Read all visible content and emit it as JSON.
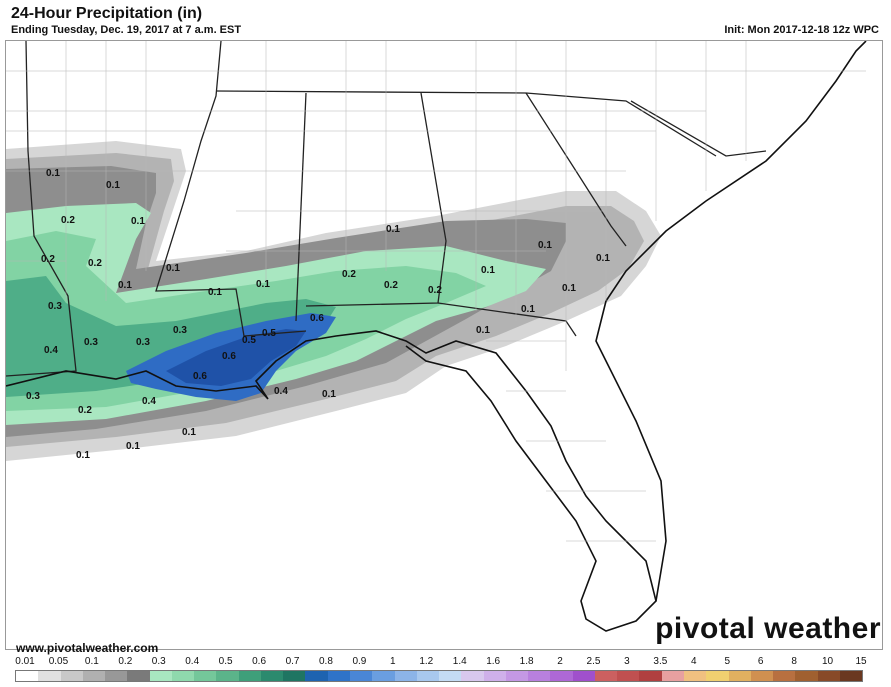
{
  "header": {
    "title": "24-Hour Precipitation (in)",
    "subtitle": "Ending Tuesday, Dec. 19, 2017 at 7 a.m. EST",
    "init": "Init: Mon 2017-12-18 12z WPC"
  },
  "footer": {
    "website": "www.pivotalweather.com",
    "brand": "pivotal weather"
  },
  "map": {
    "contour_labels": [
      "0.1",
      "0.1",
      "0.2",
      "0.1",
      "0.2",
      "0.2",
      "0.1",
      "0.1",
      "0.3",
      "0.3",
      "0.4",
      "0.3",
      "0.3",
      "0.3",
      "0.2",
      "0.4",
      "0.1",
      "0.1",
      "0.1",
      "0.2",
      "0.2",
      "0.2",
      "0.1",
      "0.1",
      "0.1",
      "0.1",
      "0.1",
      "0.1",
      "0.6",
      "0.5",
      "0.5",
      "0.6",
      "0.6",
      "0.4",
      "0.1",
      "0.1",
      "0.1",
      "0.1"
    ]
  },
  "legend": {
    "labels": [
      "0.01",
      "0.05",
      "0.1",
      "0.2",
      "0.3",
      "0.4",
      "0.5",
      "0.6",
      "0.7",
      "0.8",
      "0.9",
      "1",
      "1.2",
      "1.4",
      "1.6",
      "1.8",
      "2",
      "2.5",
      "3",
      "3.5",
      "4",
      "5",
      "6",
      "8",
      "10",
      "15"
    ],
    "colors": [
      "#ffffff",
      "#e0e0e0",
      "#c8c8c8",
      "#b0b0b0",
      "#989898",
      "#7a7a7a",
      "#a8e6c0",
      "#8fd9ad",
      "#74c79a",
      "#5bb48a",
      "#3f9f7a",
      "#2b8a6e",
      "#1f7562",
      "#1e63b0",
      "#2f73c8",
      "#4a86d6",
      "#6a9ee0",
      "#8cb4e8",
      "#a8c8ee",
      "#c4dcf4",
      "#d8c8ee",
      "#cfb0ea",
      "#c498e4",
      "#b880de",
      "#ae68d6",
      "#a050cc",
      "#cc6060",
      "#c05050",
      "#b04040",
      "#e8a0a0",
      "#f0c080",
      "#f0d070",
      "#e0b060",
      "#d09050",
      "#b87040",
      "#a06030",
      "#884a28",
      "#6a3820"
    ]
  },
  "colors": {
    "water": "#ffffff",
    "border": "#222222"
  }
}
